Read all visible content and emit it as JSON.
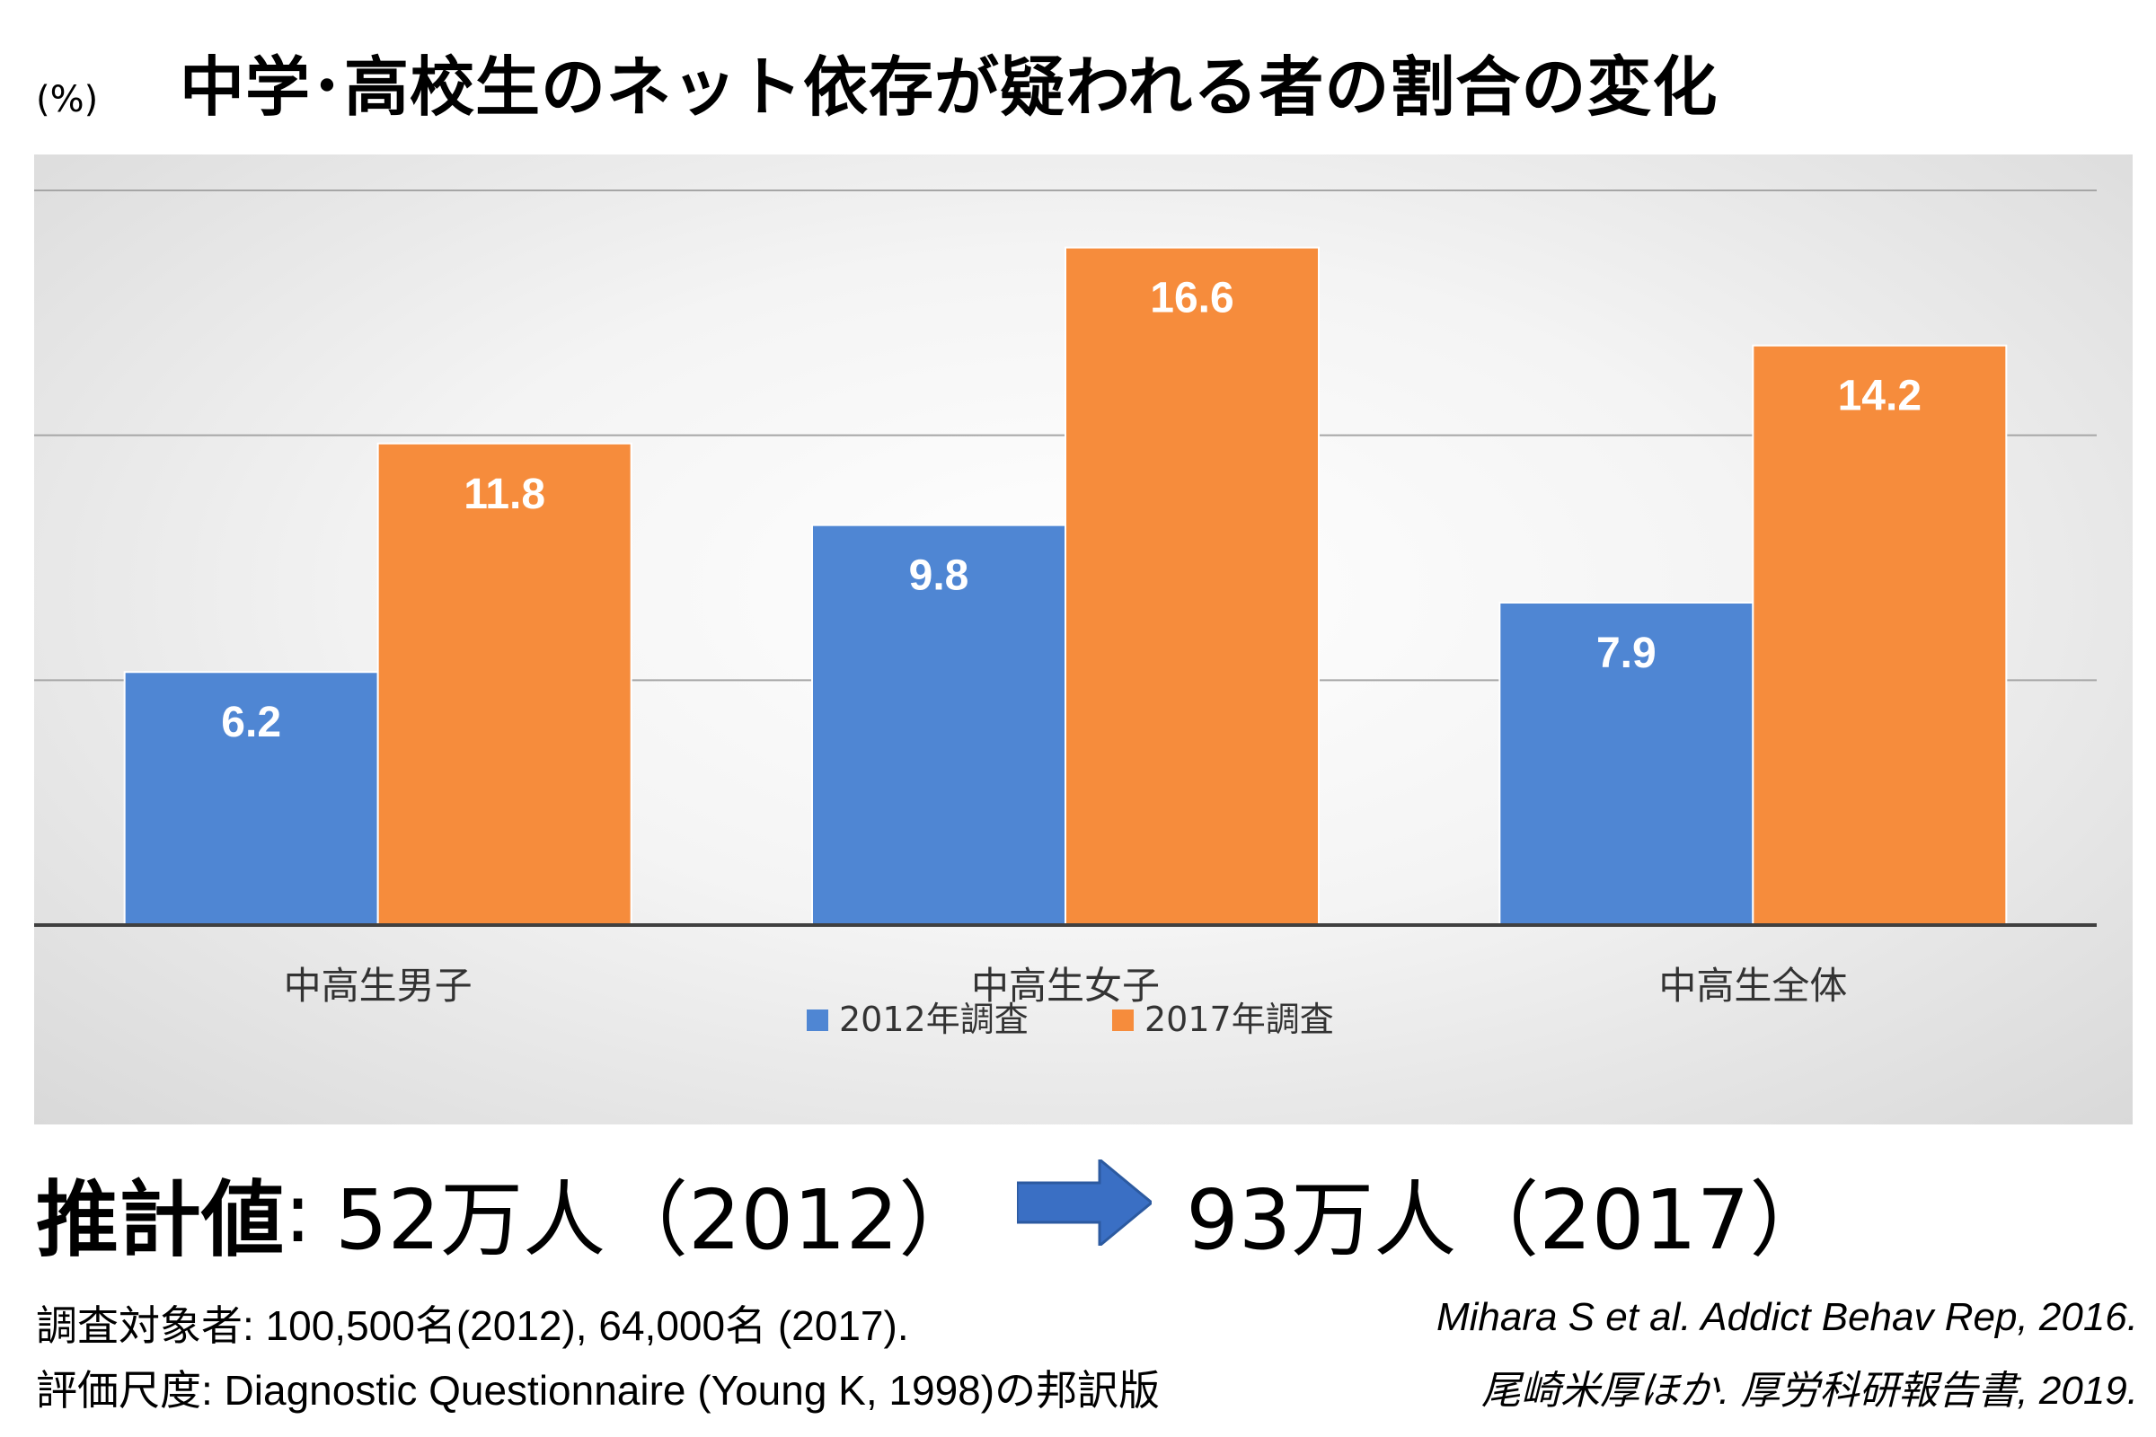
{
  "header": {
    "unit": "(%)",
    "title": "中学･高校生のネット依存が疑われる者の割合の変化"
  },
  "chart_data": {
    "type": "bar",
    "categories": [
      "中高生男子",
      "中高生女子",
      "中高生全体"
    ],
    "series": [
      {
        "name": "2012年調査",
        "values": [
          6.2,
          9.8,
          7.9
        ],
        "color": "#4F86D3"
      },
      {
        "name": "2017年調査",
        "values": [
          11.8,
          16.6,
          14.2
        ],
        "color": "#F68C3C"
      }
    ],
    "ylabel": "(%)",
    "ylim": [
      0,
      18
    ],
    "gridlines": [
      6,
      12,
      18
    ],
    "grid": true,
    "legend": "bottom",
    "data_labels": true
  },
  "estimate": {
    "label": "推計値",
    "separator": ":",
    "from": "52万人（2012）",
    "to": "93万人（2017）",
    "arrow_icon": "right-arrow-icon",
    "arrow_color": "#3A6FC4"
  },
  "notes": [
    "調査対象者: 100,500名(2012), 64,000名 (2017).",
    "評価尺度: Diagnostic Questionnaire (Young K, 1998)の邦訳版"
  ],
  "citations": [
    "Mihara S et al. Addict Behav Rep, 2016.",
    "尾崎米厚ほか. 厚労科研報告書, 2019."
  ]
}
